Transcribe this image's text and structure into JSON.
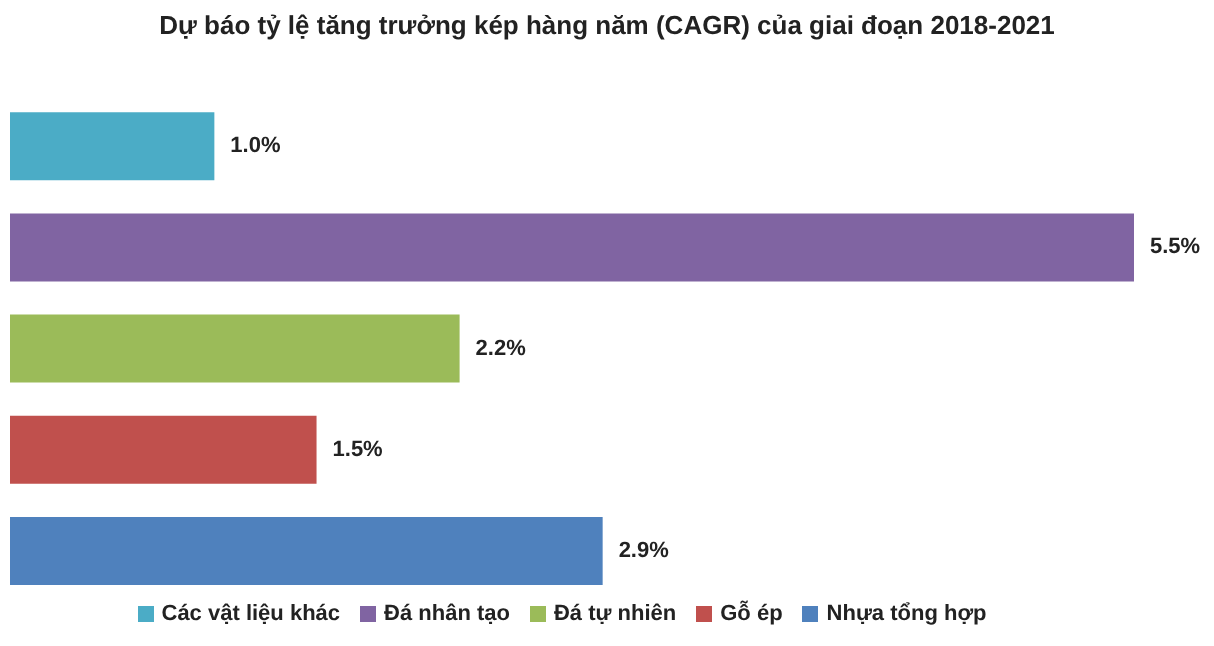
{
  "chart_data": {
    "type": "bar",
    "orientation": "horizontal",
    "stacked": true,
    "title": "Dự báo tỷ lệ tăng trưởng kép hàng năm (CAGR) của giai đoạn 2018-2021",
    "categories": [
      null,
      null,
      null,
      null,
      null
    ],
    "legend": "bottom",
    "grid": false,
    "series": [
      {
        "name": "Các vật liệu khác",
        "color": "#4bacc6",
        "values": [
          1.0,
          null,
          null,
          null,
          null
        ],
        "value_labels": [
          "1.0%",
          null,
          null,
          null,
          null
        ]
      },
      {
        "name": "Đá nhân tạo",
        "color": "#8064a2",
        "values": [
          null,
          5.5,
          null,
          null,
          null
        ],
        "value_labels": [
          null,
          "5.5%",
          null,
          null,
          null
        ]
      },
      {
        "name": "Đá tự nhiên",
        "color": "#9bbb59",
        "values": [
          null,
          null,
          2.2,
          null,
          null
        ],
        "value_labels": [
          null,
          null,
          "2.2%",
          null,
          null
        ]
      },
      {
        "name": "Gỗ ép",
        "color": "#c0504d",
        "values": [
          null,
          null,
          null,
          1.5,
          null
        ],
        "value_labels": [
          null,
          null,
          null,
          "1.5%",
          null
        ]
      },
      {
        "name": "Nhựa tổng hợp",
        "color": "#4f81bd",
        "values": [
          null,
          null,
          null,
          null,
          2.9
        ],
        "value_labels": [
          null,
          null,
          null,
          null,
          "2.9%"
        ]
      }
    ]
  }
}
